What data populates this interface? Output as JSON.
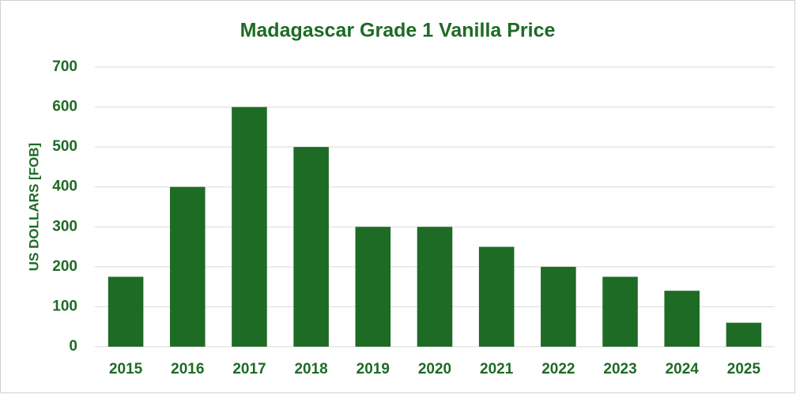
{
  "chart_data": {
    "type": "bar",
    "title": "Madagascar Grade 1 Vanilla Price",
    "y_label": "US DOLLARS [FOB]",
    "categories": [
      "2015",
      "2016",
      "2017",
      "2018",
      "2019",
      "2020",
      "2021",
      "2022",
      "2023",
      "2024",
      "2025"
    ],
    "values": [
      175,
      400,
      600,
      500,
      300,
      300,
      250,
      200,
      175,
      140,
      60
    ],
    "color": "#1e6b25",
    "ylim": [
      0,
      700
    ],
    "yticks": [
      0,
      100,
      200,
      300,
      400,
      500,
      600,
      700
    ],
    "grid": true
  }
}
